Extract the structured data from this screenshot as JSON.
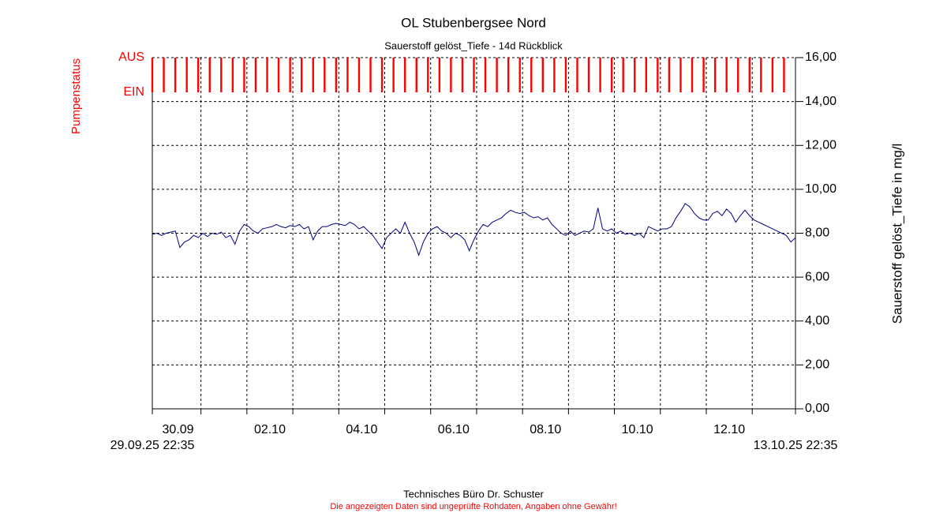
{
  "chart_data": {
    "type": "line",
    "title": "OL Stubenbergsee Nord",
    "subtitle": "Sauerstoff gelöst_Tiefe - 14d Rückblick",
    "y_label": "Sauerstoff gelöst_Tiefe in mg/l",
    "footer": "Technisches Büro Dr. Schuster",
    "disclaimer": "Die angezeigten Daten sind ungeprüfte Rohdaten, Angaben ohne Gewähr!",
    "xlim": [
      {
        "value": 0,
        "label": "29.09.25 22:35"
      },
      {
        "value": 14,
        "label": "13.10.25 22:35"
      }
    ],
    "xticks": [
      {
        "value": 0.559,
        "label": "30.09"
      },
      {
        "value": 2.559,
        "label": "02.10"
      },
      {
        "value": 4.559,
        "label": "04.10"
      },
      {
        "value": 6.559,
        "label": "06.10"
      },
      {
        "value": 8.559,
        "label": "08.10"
      },
      {
        "value": 10.559,
        "label": "10.10"
      },
      {
        "value": 12.559,
        "label": "12.10"
      }
    ],
    "xgrid": [
      1.059,
      2.059,
      3.059,
      4.059,
      5.059,
      6.059,
      7.059,
      8.059,
      9.059,
      10.059,
      11.059,
      12.059,
      13.059
    ],
    "ylim": [
      0,
      16
    ],
    "yticks": [
      {
        "value": 0,
        "label": "0,00"
      },
      {
        "value": 2,
        "label": "2,00"
      },
      {
        "value": 4,
        "label": "4,00"
      },
      {
        "value": 6,
        "label": "6,00"
      },
      {
        "value": 8,
        "label": "8,00"
      },
      {
        "value": 10,
        "label": "10,00"
      },
      {
        "value": 12,
        "label": "12,00"
      },
      {
        "value": 14,
        "label": "14,00"
      },
      {
        "value": 16,
        "label": "16,00"
      }
    ],
    "grid": true,
    "series": [
      {
        "name": "Sauerstoff gelöst_Tiefe",
        "color": "#000080",
        "x": [
          0,
          0.1,
          0.2,
          0.3,
          0.4,
          0.5,
          0.6,
          0.7,
          0.8,
          0.9,
          1,
          1.1,
          1.2,
          1.3,
          1.4,
          1.5,
          1.6,
          1.7,
          1.8,
          1.9,
          2,
          2.1,
          2.2,
          2.3,
          2.4,
          2.5,
          2.6,
          2.7,
          2.8,
          2.9,
          3,
          3.1,
          3.2,
          3.3,
          3.4,
          3.5,
          3.6,
          3.7,
          3.8,
          3.9,
          4,
          4.1,
          4.2,
          4.3,
          4.4,
          4.5,
          4.6,
          4.7,
          4.8,
          4.9,
          5,
          5.1,
          5.2,
          5.3,
          5.4,
          5.5,
          5.6,
          5.7,
          5.8,
          5.9,
          6,
          6.1,
          6.2,
          6.3,
          6.4,
          6.5,
          6.6,
          6.7,
          6.8,
          6.9,
          7,
          7.1,
          7.2,
          7.3,
          7.4,
          7.5,
          7.6,
          7.7,
          7.8,
          7.9,
          8,
          8.1,
          8.2,
          8.3,
          8.4,
          8.5,
          8.6,
          8.7,
          8.8,
          8.9,
          9,
          9.1,
          9.2,
          9.3,
          9.4,
          9.5,
          9.6,
          9.7,
          9.8,
          9.9,
          10,
          10.1,
          10.2,
          10.3,
          10.4,
          10.5,
          10.6,
          10.7,
          10.8,
          10.9,
          11,
          11.1,
          11.2,
          11.3,
          11.4,
          11.5,
          11.6,
          11.7,
          11.8,
          11.9,
          12,
          12.1,
          12.2,
          12.3,
          12.4,
          12.5,
          12.6,
          12.7,
          12.8,
          12.9,
          13,
          13.1,
          13.2,
          13.3,
          13.4,
          13.5,
          13.6,
          13.7,
          13.8,
          13.9,
          14
        ],
        "values": [
          7.95,
          8.0,
          7.9,
          8.0,
          8.05,
          8.1,
          7.35,
          7.6,
          7.7,
          7.9,
          7.8,
          8.0,
          7.85,
          8.0,
          7.95,
          8.05,
          7.8,
          7.9,
          7.5,
          8.1,
          8.4,
          8.3,
          8.1,
          8.0,
          8.2,
          8.25,
          8.3,
          8.4,
          8.3,
          8.25,
          8.35,
          8.3,
          8.4,
          8.2,
          8.3,
          7.7,
          8.1,
          8.3,
          8.3,
          8.4,
          8.45,
          8.4,
          8.35,
          8.5,
          8.4,
          8.2,
          8.3,
          8.1,
          7.9,
          7.6,
          7.3,
          7.8,
          8.0,
          8.2,
          8.0,
          8.5,
          8.0,
          7.6,
          7.0,
          7.6,
          8.0,
          8.2,
          8.3,
          8.1,
          8.0,
          7.8,
          8.0,
          7.9,
          7.7,
          7.2,
          7.7,
          8.1,
          8.4,
          8.3,
          8.5,
          8.6,
          8.7,
          8.9,
          9.05,
          8.95,
          8.9,
          8.95,
          8.8,
          8.7,
          8.75,
          8.6,
          8.7,
          8.4,
          8.2,
          8.0,
          7.9,
          8.1,
          7.9,
          8.0,
          8.1,
          8.05,
          8.2,
          9.15,
          8.2,
          8.1,
          8.2,
          8.0,
          8.1,
          7.95,
          8.0,
          7.9,
          8.0,
          7.8,
          8.3,
          8.2,
          8.1,
          8.2,
          8.2,
          8.3,
          8.7,
          9.0,
          9.35,
          9.2,
          8.9,
          8.7,
          8.6,
          8.6,
          8.9,
          9.0,
          8.8,
          9.1,
          8.9,
          8.5,
          8.8,
          9.05,
          8.8,
          8.6,
          8.5,
          8.4,
          8.3,
          8.2,
          8.1,
          8.0,
          7.9,
          7.6,
          7.8
        ]
      }
    ],
    "pump": {
      "name": "Pumpenstatus",
      "color": "#ff0000",
      "yticks": [
        {
          "value": 0,
          "label": "EIN"
        },
        {
          "value": 1,
          "label": "AUS"
        }
      ],
      "x": [
        0,
        0.25,
        0.5,
        0.75,
        1,
        1.25,
        1.5,
        1.75,
        2,
        2.25,
        2.5,
        2.75,
        3,
        3.25,
        3.5,
        3.75,
        4,
        4.25,
        4.5,
        4.75,
        5,
        5.25,
        5.5,
        5.75,
        6,
        6.25,
        6.5,
        6.75,
        7,
        7.25,
        7.5,
        7.75,
        8,
        8.25,
        8.5,
        8.75,
        9,
        9.25,
        9.5,
        9.75,
        10,
        10.25,
        10.5,
        10.75,
        11,
        11.25,
        11.5,
        11.75,
        12,
        12.25,
        12.5,
        12.75,
        13,
        13.25,
        13.5,
        13.75
      ]
    }
  }
}
